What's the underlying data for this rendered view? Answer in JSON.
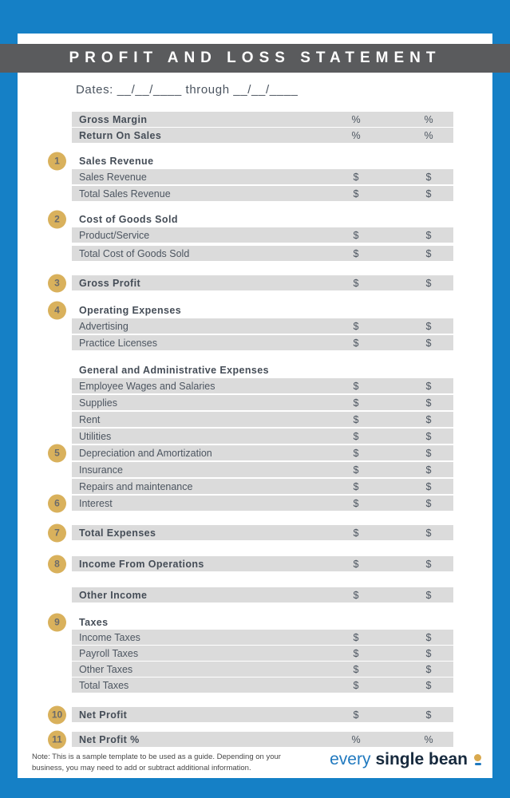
{
  "header": {
    "title": "PROFIT AND LOSS STATEMENT"
  },
  "dates_line": "Dates: __/__/____ through __/__/____",
  "colors": {
    "frame_blue": "#1580c6",
    "band_gray": "#5a5b5d",
    "row_gray": "#dbdbdb",
    "badge_gold": "#d9b15c",
    "logo_blue": "#2079bf",
    "logo_navy": "#16293d"
  },
  "table": {
    "rows": [
      {
        "label": "Gross Margin",
        "v1": "%",
        "v2": "%"
      },
      {
        "label": "Return On Sales",
        "v1": "%",
        "v2": "%"
      },
      {
        "num": "1",
        "label": "Sales Revenue"
      },
      {
        "label": "Sales Revenue",
        "v1": "$",
        "v2": "$"
      },
      {
        "label": "Total Sales Revenue",
        "v1": "$",
        "v2": "$"
      },
      {
        "num": "2",
        "label": "Cost of Goods Sold"
      },
      {
        "label": "Product/Service",
        "v1": "$",
        "v2": "$"
      },
      {
        "label": "Total Cost of Goods Sold",
        "v1": "$",
        "v2": "$"
      },
      {
        "num": "3",
        "label": "Gross Profit",
        "v1": "$",
        "v2": "$"
      },
      {
        "num": "4",
        "label": "Operating Expenses"
      },
      {
        "label": "Advertising",
        "v1": "$",
        "v2": "$"
      },
      {
        "label": "Practice Licenses",
        "v1": "$",
        "v2": "$"
      },
      {
        "label": "General and Administrative Expenses"
      },
      {
        "label": "Employee Wages and Salaries",
        "v1": "$",
        "v2": "$"
      },
      {
        "label": "Supplies",
        "v1": "$",
        "v2": "$"
      },
      {
        "label": "Rent",
        "v1": "$",
        "v2": "$"
      },
      {
        "label": "Utilities",
        "v1": "$",
        "v2": "$"
      },
      {
        "num": "5",
        "label": "Depreciation and Amortization",
        "v1": "$",
        "v2": "$"
      },
      {
        "label": "Insurance",
        "v1": "$",
        "v2": "$"
      },
      {
        "label": "Repairs and maintenance",
        "v1": "$",
        "v2": "$"
      },
      {
        "num": "6",
        "label": "Interest",
        "v1": "$",
        "v2": "$"
      },
      {
        "num": "7",
        "label": "Total  Expenses",
        "v1": "$",
        "v2": "$"
      },
      {
        "num": "8",
        "label": "Income From Operations",
        "v1": "$",
        "v2": "$"
      },
      {
        "label": "Other Income",
        "v1": "$",
        "v2": "$"
      },
      {
        "num": "9",
        "label": "Taxes"
      },
      {
        "label": "Income Taxes",
        "v1": "$",
        "v2": "$"
      },
      {
        "label": "Payroll Taxes",
        "v1": "$",
        "v2": "$"
      },
      {
        "label": "Other  Taxes",
        "v1": "$",
        "v2": "$"
      },
      {
        "label": "Total Taxes",
        "v1": "$",
        "v2": "$"
      },
      {
        "num": "10",
        "label": "Net Profit",
        "v1": "$",
        "v2": "$"
      },
      {
        "num": "11",
        "label": "Net Profit %",
        "v1": "%",
        "v2": "%"
      }
    ]
  },
  "footer": {
    "note": "Note: This is a sample template to be used as a guide. Depending on your business, you may need to add or subtract additional information.",
    "logo": {
      "word1": "every",
      "word2": "single bean"
    }
  }
}
